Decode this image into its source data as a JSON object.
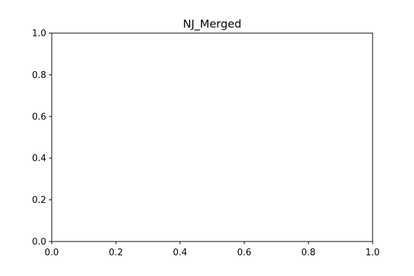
{
  "chart_data": {
    "type": "line",
    "title": "NJ_Merged",
    "xlabel": "",
    "ylabel": "",
    "xlim": [
      0.0,
      1.0
    ],
    "ylim": [
      0.0,
      1.0
    ],
    "xticks": [
      0.0,
      0.2,
      0.4,
      0.6,
      0.8,
      1.0
    ],
    "xtick_labels": [
      "0.0",
      "0.2",
      "0.4",
      "0.6",
      "0.8",
      "1.0"
    ],
    "yticks": [
      0.0,
      0.2,
      0.4,
      0.6,
      0.8,
      1.0
    ],
    "ytick_labels": [
      "0.0",
      "0.2",
      "0.4",
      "0.6",
      "0.8",
      "1.0"
    ],
    "series": [],
    "grid": false,
    "legend": "none"
  }
}
